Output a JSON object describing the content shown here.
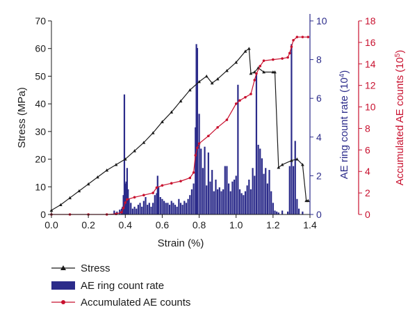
{
  "chart_data": {
    "type": "line",
    "xlabel": "Strain (%)",
    "xlim": [
      0,
      1.4
    ],
    "x_ticks": [
      "0.0",
      "0.2",
      "0.4",
      "0.6",
      "0.8",
      "1.0",
      "1.2",
      "1.4"
    ],
    "axes": {
      "left": {
        "label": "Stress (MPa)",
        "ylim": [
          0,
          70
        ],
        "ticks": [
          "0",
          "10",
          "20",
          "30",
          "40",
          "50",
          "60",
          "70"
        ],
        "color": "#1a1a1a"
      },
      "right_inner": {
        "label_main": "AE ring count rate (10",
        "label_sup": "4",
        "label_end": ")",
        "ylim": [
          0,
          10
        ],
        "ticks": [
          "0",
          "2",
          "4",
          "6",
          "8",
          "10"
        ],
        "color": "#2b2b8a"
      },
      "right_outer": {
        "label_main": "Accumulated AE counts (10",
        "label_sup": "5",
        "label_end": ")",
        "ylim": [
          0,
          18
        ],
        "ticks": [
          "0",
          "2",
          "4",
          "6",
          "8",
          "10",
          "12",
          "14",
          "16",
          "18"
        ],
        "color": "#c8102e"
      }
    },
    "series": [
      {
        "name": "Stress",
        "axis": "left",
        "kind": "line",
        "color": "#1a1a1a",
        "marker": "triangle",
        "points": [
          [
            0.0,
            1.5
          ],
          [
            0.05,
            3.5
          ],
          [
            0.1,
            6
          ],
          [
            0.15,
            8.5
          ],
          [
            0.2,
            11
          ],
          [
            0.25,
            13.5
          ],
          [
            0.3,
            16
          ],
          [
            0.35,
            18
          ],
          [
            0.4,
            20
          ],
          [
            0.45,
            23
          ],
          [
            0.5,
            26
          ],
          [
            0.55,
            29.5
          ],
          [
            0.6,
            33.5
          ],
          [
            0.65,
            37
          ],
          [
            0.7,
            41
          ],
          [
            0.75,
            45
          ],
          [
            0.8,
            48
          ],
          [
            0.84,
            50
          ],
          [
            0.87,
            47.5
          ],
          [
            0.9,
            49
          ],
          [
            0.95,
            52
          ],
          [
            1.0,
            55
          ],
          [
            1.05,
            59
          ],
          [
            1.07,
            60
          ],
          [
            1.08,
            51
          ],
          [
            1.1,
            51.5
          ],
          [
            1.12,
            53
          ],
          [
            1.15,
            51.5
          ],
          [
            1.2,
            51.5
          ],
          [
            1.21,
            51.5
          ],
          [
            1.23,
            17
          ],
          [
            1.25,
            18
          ],
          [
            1.3,
            19.5
          ],
          [
            1.33,
            20
          ],
          [
            1.36,
            18
          ],
          [
            1.38,
            5
          ],
          [
            1.39,
            5
          ]
        ]
      },
      {
        "name": "AE ring count rate",
        "axis": "right_inner",
        "kind": "bar",
        "color": "#2b2b8a",
        "points": [
          [
            0.34,
            0.2
          ],
          [
            0.355,
            0.15
          ],
          [
            0.37,
            0.25
          ],
          [
            0.38,
            0.3
          ],
          [
            0.385,
            0.4
          ],
          [
            0.39,
            1.0
          ],
          [
            0.395,
            6.2
          ],
          [
            0.4,
            1.6
          ],
          [
            0.405,
            1.7
          ],
          [
            0.41,
            2.4
          ],
          [
            0.415,
            1.3
          ],
          [
            0.42,
            0.8
          ],
          [
            0.43,
            0.6
          ],
          [
            0.44,
            0.3
          ],
          [
            0.45,
            0.4
          ],
          [
            0.46,
            0.3
          ],
          [
            0.47,
            0.5
          ],
          [
            0.48,
            0.6
          ],
          [
            0.49,
            0.4
          ],
          [
            0.5,
            0.7
          ],
          [
            0.51,
            0.9
          ],
          [
            0.52,
            0.5
          ],
          [
            0.53,
            0.6
          ],
          [
            0.54,
            0.4
          ],
          [
            0.55,
            0.6
          ],
          [
            0.56,
            1.0
          ],
          [
            0.57,
            1.1
          ],
          [
            0.575,
            2.0
          ],
          [
            0.58,
            1.4
          ],
          [
            0.59,
            0.9
          ],
          [
            0.6,
            0.8
          ],
          [
            0.61,
            0.7
          ],
          [
            0.62,
            0.6
          ],
          [
            0.63,
            0.6
          ],
          [
            0.64,
            0.5
          ],
          [
            0.65,
            0.7
          ],
          [
            0.66,
            0.6
          ],
          [
            0.67,
            0.5
          ],
          [
            0.68,
            0.4
          ],
          [
            0.69,
            0.8
          ],
          [
            0.7,
            0.6
          ],
          [
            0.71,
            0.5
          ],
          [
            0.72,
            0.7
          ],
          [
            0.73,
            0.6
          ],
          [
            0.74,
            0.8
          ],
          [
            0.75,
            1.0
          ],
          [
            0.76,
            1.3
          ],
          [
            0.77,
            1.6
          ],
          [
            0.78,
            4.5
          ],
          [
            0.785,
            8.8
          ],
          [
            0.79,
            8.6
          ],
          [
            0.8,
            5.2
          ],
          [
            0.81,
            3.4
          ],
          [
            0.82,
            2.4
          ],
          [
            0.83,
            3.5
          ],
          [
            0.84,
            1.5
          ],
          [
            0.85,
            3.2
          ],
          [
            0.86,
            1.7
          ],
          [
            0.87,
            2.3
          ],
          [
            0.88,
            1.2
          ],
          [
            0.89,
            1.8
          ],
          [
            0.9,
            1.3
          ],
          [
            0.91,
            1.4
          ],
          [
            0.92,
            1.2
          ],
          [
            0.93,
            1.3
          ],
          [
            0.94,
            2.5
          ],
          [
            0.95,
            2.5
          ],
          [
            0.96,
            1.6
          ],
          [
            0.97,
            1.2
          ],
          [
            0.98,
            1.7
          ],
          [
            0.99,
            1.8
          ],
          [
            1.0,
            2.0
          ],
          [
            1.01,
            6.7
          ],
          [
            1.02,
            1.3
          ],
          [
            1.03,
            1.1
          ],
          [
            1.04,
            1.0
          ],
          [
            1.05,
            1.2
          ],
          [
            1.06,
            1.5
          ],
          [
            1.07,
            1.8
          ],
          [
            1.08,
            1.3
          ],
          [
            1.09,
            2.4
          ],
          [
            1.1,
            2.0
          ],
          [
            1.11,
            7.3
          ],
          [
            1.12,
            3.6
          ],
          [
            1.13,
            3.4
          ],
          [
            1.14,
            2.9
          ],
          [
            1.15,
            2.1
          ],
          [
            1.16,
            2.4
          ],
          [
            1.17,
            1.6
          ],
          [
            1.18,
            2.3
          ],
          [
            1.19,
            1.2
          ],
          [
            1.2,
            0.6
          ],
          [
            1.21,
            0.2
          ],
          [
            1.22,
            0.15
          ],
          [
            1.23,
            0.1
          ],
          [
            1.25,
            0.2
          ],
          [
            1.28,
            0.15
          ],
          [
            1.29,
            2.5
          ],
          [
            1.3,
            8.8
          ],
          [
            1.31,
            2.5
          ],
          [
            1.32,
            3.8
          ],
          [
            1.33,
            0.8
          ],
          [
            1.34,
            0.3
          ],
          [
            1.36,
            0.15
          ]
        ]
      },
      {
        "name": "Accumulated AE counts",
        "axis": "right_outer",
        "kind": "line",
        "color": "#c8102e",
        "marker": "circle",
        "points": [
          [
            0.0,
            0.0
          ],
          [
            0.1,
            0.0
          ],
          [
            0.2,
            0.0
          ],
          [
            0.3,
            0.0
          ],
          [
            0.35,
            0.05
          ],
          [
            0.38,
            0.2
          ],
          [
            0.39,
            0.6
          ],
          [
            0.4,
            1.1
          ],
          [
            0.41,
            1.4
          ],
          [
            0.45,
            1.6
          ],
          [
            0.5,
            1.8
          ],
          [
            0.55,
            2.0
          ],
          [
            0.57,
            2.5
          ],
          [
            0.6,
            2.7
          ],
          [
            0.65,
            2.9
          ],
          [
            0.7,
            3.1
          ],
          [
            0.75,
            3.4
          ],
          [
            0.77,
            3.9
          ],
          [
            0.78,
            5.5
          ],
          [
            0.79,
            6.2
          ],
          [
            0.8,
            6.6
          ],
          [
            0.85,
            7.3
          ],
          [
            0.9,
            8.1
          ],
          [
            0.95,
            8.8
          ],
          [
            1.0,
            10.3
          ],
          [
            1.02,
            10.6
          ],
          [
            1.05,
            10.9
          ],
          [
            1.08,
            11.2
          ],
          [
            1.1,
            12.5
          ],
          [
            1.11,
            13.1
          ],
          [
            1.13,
            13.8
          ],
          [
            1.15,
            14.3
          ],
          [
            1.2,
            14.4
          ],
          [
            1.25,
            14.5
          ],
          [
            1.28,
            14.6
          ],
          [
            1.29,
            15.0
          ],
          [
            1.3,
            15.6
          ],
          [
            1.31,
            16.2
          ],
          [
            1.33,
            16.5
          ],
          [
            1.36,
            16.5
          ],
          [
            1.39,
            16.5
          ]
        ]
      }
    ],
    "legend": {
      "placement": "bottom-left",
      "items": [
        {
          "label": "Stress",
          "color": "#1a1a1a",
          "symbol": "line-triangle"
        },
        {
          "label": "AE ring count rate",
          "color": "#2b2b8a",
          "symbol": "bar"
        },
        {
          "label": "Accumulated AE counts",
          "color": "#c8102e",
          "symbol": "line-circle"
        }
      ]
    },
    "grid": false
  }
}
